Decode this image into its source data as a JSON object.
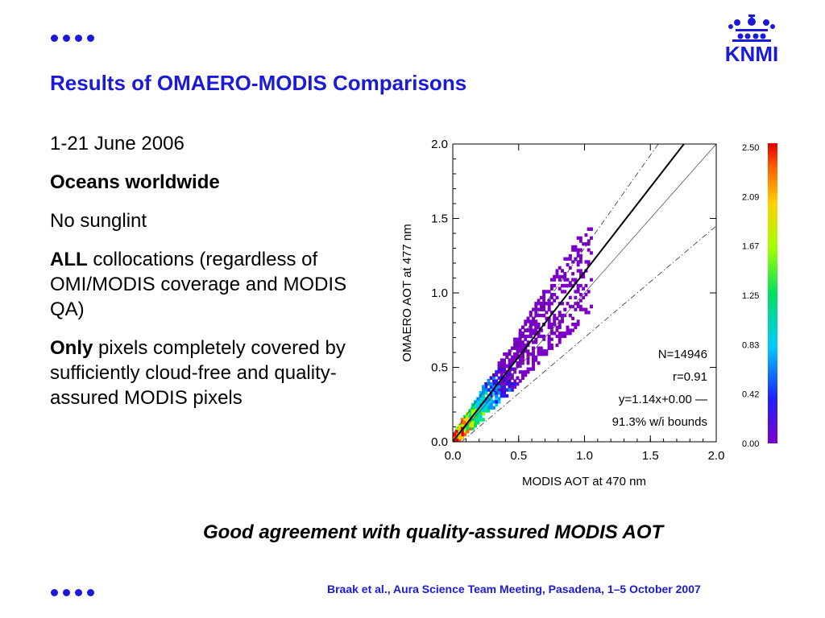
{
  "logo": {
    "text": "KNMI"
  },
  "title": "Results of OMAERO-MODIS Comparisons",
  "left": {
    "date": "1-21 June 2006",
    "region": "Oceans worldwide",
    "glint": "No sunglint",
    "all_bold": "ALL",
    "all_rest": " collocations (regardless of OMI/MODIS coverage and MODIS QA)",
    "only_bold": "Only",
    "only_rest": " pixels completely covered by sufficiently cloud-free and quality-assured MODIS pixels"
  },
  "conclusion": "Good agreement with quality-assured MODIS AOT",
  "footer": "Braak et al., Aura Science Team Meeting, Pasadena, 1–5 October 2007",
  "colors": {
    "accent": "#1a1ad8"
  },
  "chart_data": {
    "type": "heatmap",
    "title": "",
    "xlabel": "MODIS AOT at 470 nm",
    "ylabel": "OMAERO AOT at 477 nm",
    "xlim": [
      0.0,
      2.0
    ],
    "ylim": [
      0.0,
      2.0
    ],
    "xticks": [
      "0.0",
      "0.5",
      "1.0",
      "1.5",
      "2.0"
    ],
    "yticks": [
      "0.0",
      "0.5",
      "1.0",
      "1.5",
      "2.0"
    ],
    "colorbar_labels": [
      "2.50",
      "2.09",
      "1.67",
      "1.25",
      "0.83",
      "0.42",
      "0.00"
    ],
    "lines": [
      {
        "kind": "fit",
        "slope": 1.14,
        "intercept": 0.0,
        "style": "solid-thick"
      },
      {
        "kind": "one-to-one",
        "slope": 1.0,
        "intercept": 0.0,
        "style": "solid-thin"
      },
      {
        "kind": "bound-upper",
        "slope": 1.25,
        "intercept": 0.05,
        "style": "dash-dot"
      },
      {
        "kind": "bound-lower",
        "slope": 0.75,
        "intercept": -0.05,
        "style": "dash-dot"
      }
    ],
    "annotations": [
      "N=14946",
      "r=0.91",
      "y=1.14x+0.00 —",
      "91.3% w/i bounds"
    ]
  }
}
